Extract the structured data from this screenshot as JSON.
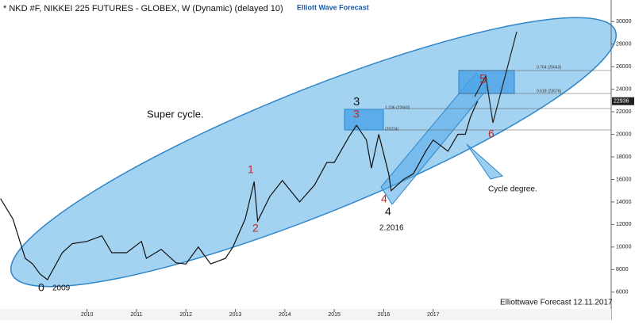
{
  "chart_data": {
    "type": "line",
    "title": "* NKD #F, NIKKEI 225 FUTURES - GLOBEX, W (Dynamic) (delayed 10)",
    "brand": "Elliott Wave Forecast",
    "footer": "Elliottwave Forecast 12.11.2017",
    "x": [
      2008.25,
      2008.5,
      2008.75,
      2008.9,
      2009.05,
      2009.2,
      2009.5,
      2009.7,
      2010.0,
      2010.3,
      2010.5,
      2010.8,
      2011.1,
      2011.2,
      2011.5,
      2011.8,
      2012.0,
      2012.25,
      2012.5,
      2012.8,
      2012.95,
      2013.2,
      2013.38,
      2013.45,
      2013.7,
      2013.95,
      2014.3,
      2014.6,
      2014.85,
      2015.0,
      2015.3,
      2015.45,
      2015.65,
      2015.75,
      2015.9,
      2016.1,
      2016.15,
      2016.4,
      2016.6,
      2016.85,
      2017.0,
      2017.3,
      2017.5,
      2017.65,
      2017.75,
      2017.85,
      2017.9
    ],
    "series": [
      {
        "name": "NKD",
        "color": "#111111",
        "values": [
          14300,
          12500,
          9000,
          8500,
          7600,
          7100,
          9500,
          10300,
          10500,
          11000,
          9500,
          9500,
          10500,
          9000,
          9800,
          8600,
          8500,
          10000,
          8500,
          9000,
          10000,
          12500,
          15800,
          12300,
          14500,
          15900,
          14000,
          15500,
          17500,
          17500,
          19800,
          20800,
          19500,
          17000,
          20000,
          16500,
          15000,
          16000,
          16500,
          18500,
          19500,
          18500,
          20000,
          20000,
          21500,
          22500,
          22936
        ]
      }
    ],
    "last_value": 22936,
    "xlim": [
      2008.24,
      2020.6
    ],
    "xticks": [
      2010,
      2011,
      2012,
      2013,
      2014,
      2015,
      2016,
      2017
    ],
    "ylim": [
      5000,
      31000
    ],
    "yticks": [
      6000,
      8000,
      10000,
      12000,
      14000,
      16000,
      18000,
      20000,
      22000,
      24000,
      26000,
      28000,
      30000
    ],
    "annotations": [
      {
        "text": "Super cycle.",
        "color": "#111111"
      },
      {
        "text": "1",
        "color": "#c0282d"
      },
      {
        "text": "2",
        "color": "#c0282d"
      },
      {
        "text": "3",
        "color": "#111111"
      },
      {
        "text": "3",
        "color": "#c0282d"
      },
      {
        "text": "4",
        "color": "#c0282d"
      },
      {
        "text": "4",
        "color": "#111111"
      },
      {
        "text": "2.2016",
        "color": "#111111"
      },
      {
        "text": "5",
        "color": "#c0282d"
      },
      {
        "text": "6",
        "color": "#c0282d"
      },
      {
        "text": "0",
        "color": "#111111"
      },
      {
        "text": "2009",
        "color": "#111111"
      },
      {
        "text": "Cycle degree.",
        "color": "#111111"
      },
      {
        "text": "1.236 (22660)",
        "color": "#333333"
      },
      {
        "text": "(20224)",
        "color": "#333333"
      },
      {
        "text": "0.764 (25643)",
        "color": "#333333"
      },
      {
        "text": "0.618 (23576)",
        "color": "#333333"
      }
    ]
  }
}
